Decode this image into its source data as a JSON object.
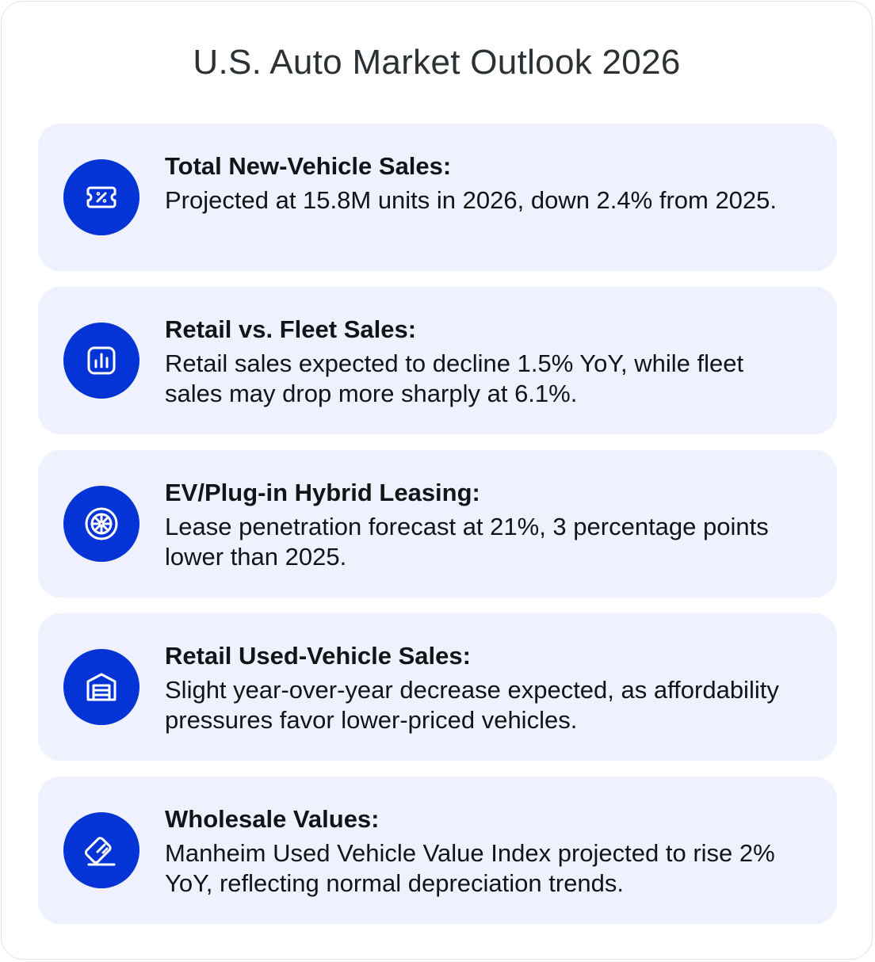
{
  "title": "U.S. Auto Market Outlook 2026",
  "colors": {
    "accent": "#0433d6",
    "card_bg": "#eff2fe"
  },
  "items": [
    {
      "icon": "discount-ticket-icon",
      "title": "Total New-Vehicle Sales:",
      "body": "Projected at 15.8M units in 2026, down 2.4% from 2025."
    },
    {
      "icon": "bar-chart-icon",
      "title": "Retail vs. Fleet Sales:",
      "body": "Retail sales expected to decline 1.5% YoY, while fleet sales may drop more sharply at 6.1%."
    },
    {
      "icon": "wheel-icon",
      "title": "EV/Plug-in Hybrid Leasing:",
      "body": "Lease penetration forecast at 21%, 3 percentage points lower than 2025."
    },
    {
      "icon": "garage-icon",
      "title": "Retail Used-Vehicle Sales:",
      "body": "Slight year-over-year decrease expected, as affordability pressures favor lower-priced vehicles."
    },
    {
      "icon": "card-tilt-icon",
      "title": "Wholesale Values:",
      "body": "Manheim Used Vehicle Value Index projected to rise 2% YoY, reflecting normal depreciation trends."
    }
  ]
}
